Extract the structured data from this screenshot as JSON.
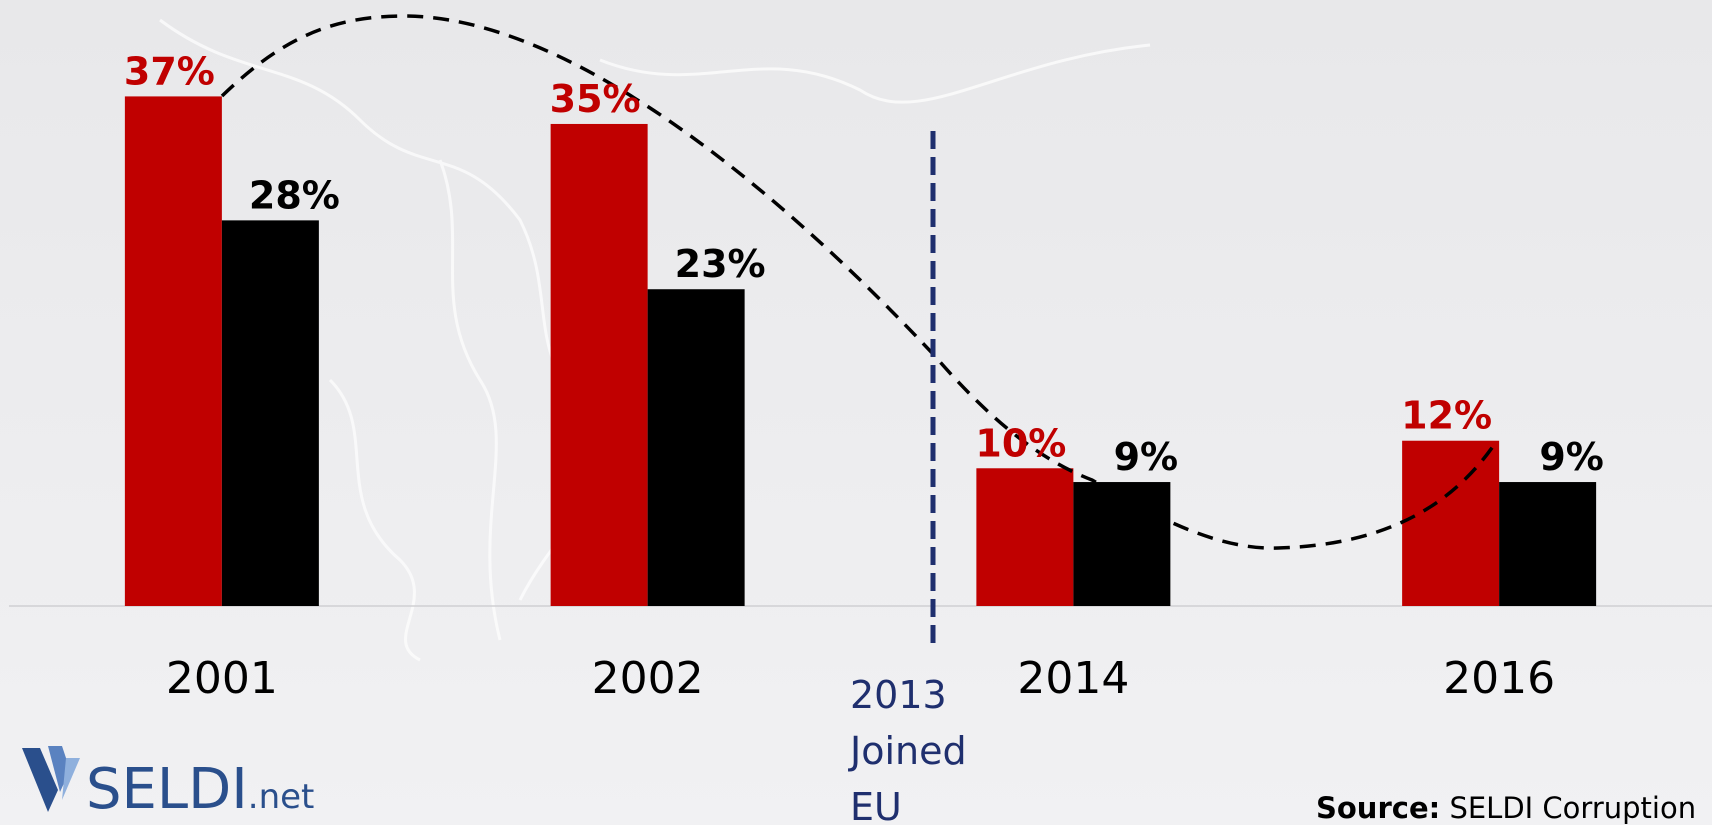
{
  "chart_data": {
    "type": "bar",
    "categories": [
      "2001",
      "2002",
      "2014",
      "2016"
    ],
    "series": [
      {
        "color": "#c00000",
        "values": [
          37,
          35,
          10,
          12
        ],
        "value_labels": [
          "37%",
          "35%",
          "10%",
          "12%"
        ]
      },
      {
        "color": "#000000",
        "values": [
          28,
          23,
          9,
          9
        ],
        "value_labels": [
          "28%",
          "23%",
          "9%",
          "9%"
        ]
      }
    ],
    "ylim": [
      0,
      44
    ],
    "annotation": [
      "2013",
      "Joined",
      "EU"
    ],
    "logo": "SELDI",
    "logo_suffix": ".net",
    "source_label": "Source:",
    "source": "SELDI Corruption"
  }
}
